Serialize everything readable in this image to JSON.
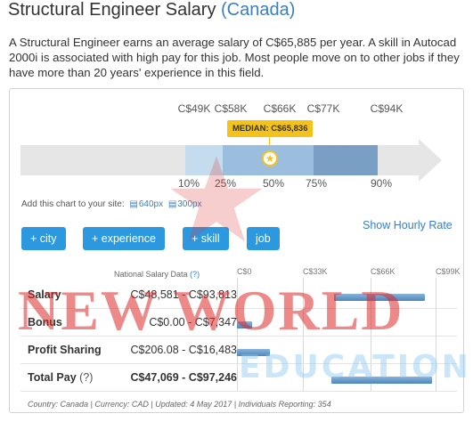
{
  "header": {
    "title": "Structural Engineer Salary",
    "country": "(Canada)"
  },
  "intro": "A Structural Engineer earns an average salary of C$65,885 per year. A skill in Autocad 2000i is associated with high pay for this job. Most people move on to other jobs if they have more than 20 years' experience in this field.",
  "percentile_chart": {
    "top_labels": [
      "C$49K",
      "C$58K",
      "C$66K",
      "C$77K",
      "C$94K"
    ],
    "bottom_labels": [
      "10%",
      "25%",
      "50%",
      "75%",
      "90%"
    ],
    "median_label": "MEDIAN: C$65,836",
    "colors": {
      "track": "#e6e6e6",
      "band_outer": "#c4dcee",
      "band_inner": "#9bbede",
      "band_upper": "#7a9fc4",
      "median": "#f3c21c"
    }
  },
  "embed": {
    "text": "Add this chart to your site:",
    "link1": "640px",
    "link2": "300px"
  },
  "show_hourly": "Show Hourly Rate",
  "filters": [
    "+ city",
    "+ experience",
    "+ skill",
    "job"
  ],
  "table": {
    "header": "National Salary Data",
    "help": "(?)",
    "axis_ticks": [
      "C$0",
      "C$33K",
      "C$66K",
      "C$99K"
    ],
    "rows": [
      {
        "label": "Salary",
        "help": "",
        "range": "C$48,581 - C$93,813",
        "low": 48581,
        "high": 93813
      },
      {
        "label": "Bonus",
        "help": "",
        "range": "C$0.00 - C$7,347",
        "low": 0,
        "high": 7347
      },
      {
        "label": "Profit Sharing",
        "help": "",
        "range": "C$206.08 - C$16,483",
        "low": 206.08,
        "high": 16483
      },
      {
        "label": "Total Pay",
        "help": "(?)",
        "range": "C$47,069 - C$97,246",
        "low": 47069,
        "high": 97246
      }
    ]
  },
  "footer": "Country: Canada | Currency: CAD | Updated: 4 May 2017 | Individuals Reporting: 354",
  "watermark": {
    "line1": "NEW WORLD",
    "line2": "EDUCATION"
  }
}
